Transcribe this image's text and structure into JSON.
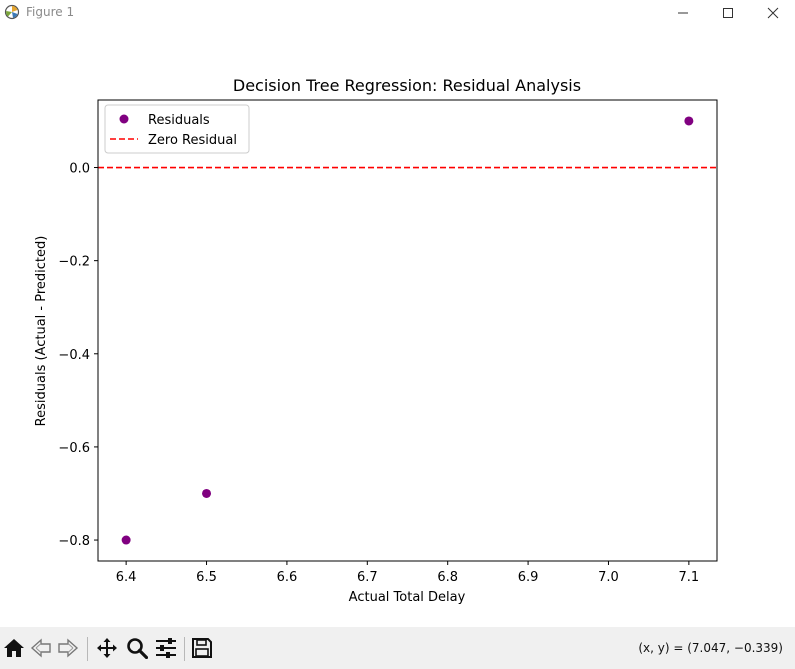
{
  "window": {
    "title": "Figure 1"
  },
  "toolbar": {
    "buttons": [
      "home-icon",
      "back-icon",
      "forward-icon",
      "pan-icon",
      "zoom-icon",
      "configure-subplots-icon",
      "save-icon"
    ],
    "coords_text": "(x, y) = (7.047, −0.339)"
  },
  "chart_data": {
    "type": "scatter",
    "title": "Decision Tree Regression: Residual Analysis",
    "xlabel": "Actual Total Delay",
    "ylabel": "Residuals (Actual - Predicted)",
    "xlim": [
      6.365,
      7.135
    ],
    "ylim": [
      -0.845,
      0.145
    ],
    "xticks": [
      6.4,
      6.5,
      6.6,
      6.7,
      6.8,
      6.9,
      7.0,
      7.1
    ],
    "xtick_labels": [
      "6.4",
      "6.5",
      "6.6",
      "6.7",
      "6.8",
      "6.9",
      "7.0",
      "7.1"
    ],
    "yticks": [
      0.0,
      -0.2,
      -0.4,
      -0.6,
      -0.8
    ],
    "ytick_labels": [
      "0.0",
      "−0.2",
      "−0.4",
      "−0.6",
      "−0.8"
    ],
    "grid": false,
    "legend_position": "upper-left",
    "series": [
      {
        "name": "Residuals",
        "kind": "scatter",
        "color": "#800080",
        "x": [
          6.4,
          6.5,
          7.1
        ],
        "y": [
          -0.8,
          -0.7,
          0.1
        ]
      },
      {
        "name": "Zero Residual",
        "kind": "hline",
        "color": "#ff0000",
        "style": "dashed",
        "y": 0.0
      }
    ]
  }
}
